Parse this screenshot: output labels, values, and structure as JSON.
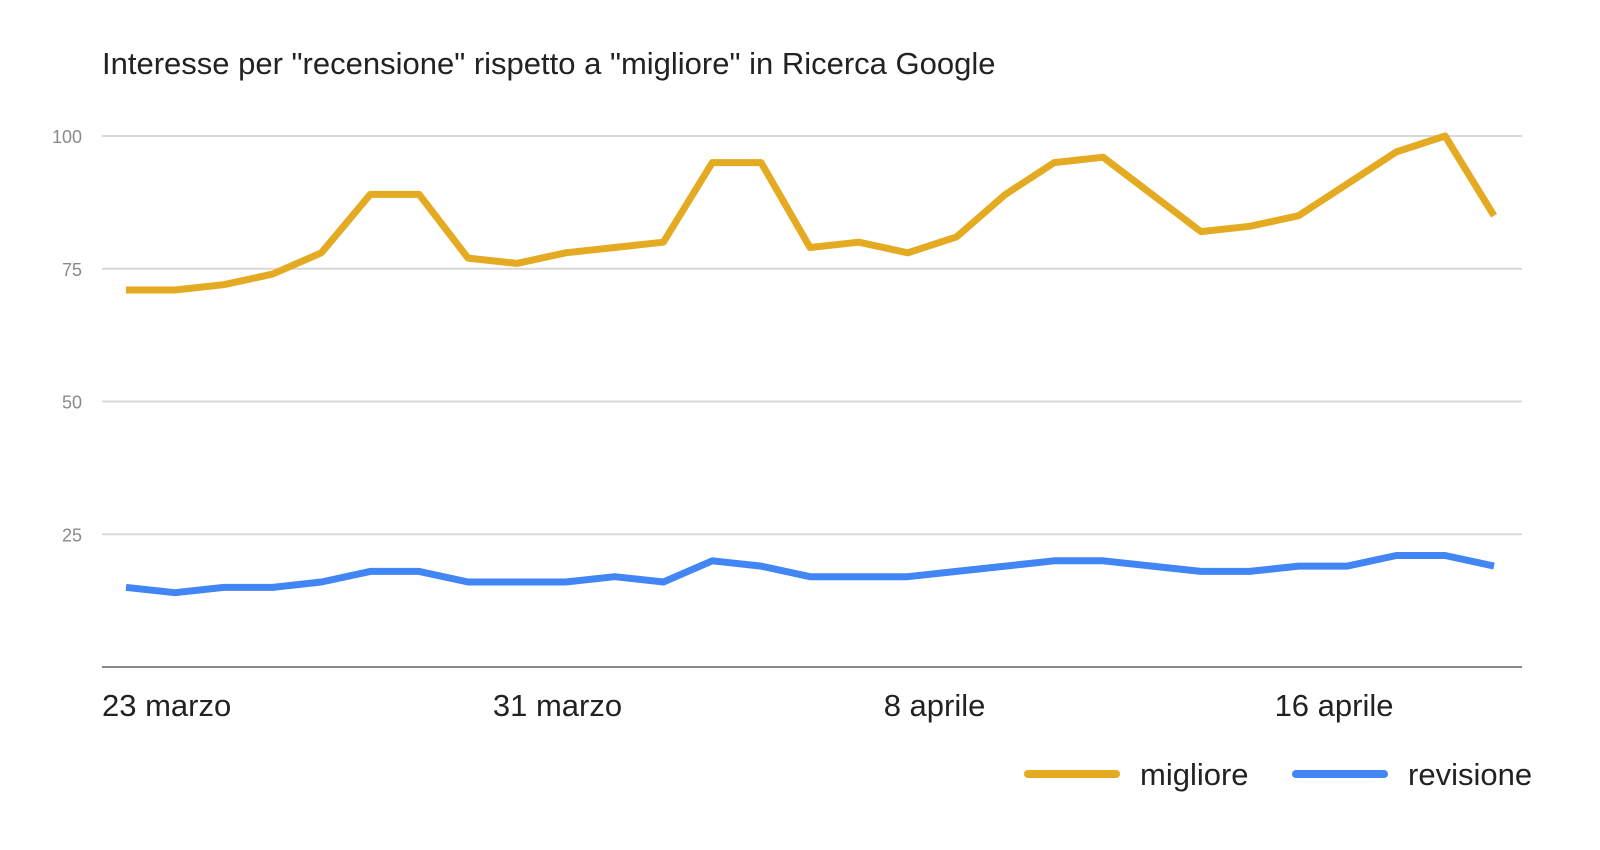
{
  "chart_data": {
    "type": "line",
    "title": "Interesse per \"recensione\" rispetto a \"migliore\" in Ricerca Google",
    "xlabel": "",
    "ylabel": "",
    "x": [
      "23 marzo",
      "24 marzo",
      "25 marzo",
      "26 marzo",
      "27 marzo",
      "28 marzo",
      "29 marzo",
      "30 marzo",
      "31 marzo",
      "1 aprile",
      "2 aprile",
      "3 aprile",
      "4 aprile",
      "5 aprile",
      "6 aprile",
      "7 aprile",
      "8 aprile",
      "9 aprile",
      "10 aprile",
      "11 aprile",
      "12 aprile",
      "13 aprile",
      "14 aprile",
      "15 aprile",
      "16 aprile",
      "17 aprile",
      "18 aprile",
      "19 aprile",
      "20 aprile"
    ],
    "x_tick_labels": [
      "23 marzo",
      "31 marzo",
      "8 aprile",
      "16 aprile"
    ],
    "x_tick_indices": [
      0,
      8,
      16,
      24
    ],
    "y_ticks": [
      25,
      50,
      75,
      100
    ],
    "ylim": [
      0,
      100
    ],
    "grid": true,
    "legend_position": "bottom-right",
    "series": [
      {
        "name": "migliore",
        "color": "#e4aa22",
        "values": [
          71,
          71,
          72,
          74,
          78,
          89,
          89,
          77,
          76,
          78,
          79,
          80,
          95,
          95,
          79,
          80,
          78,
          81,
          89,
          95,
          96,
          89,
          82,
          83,
          85,
          91,
          97,
          100,
          85
        ]
      },
      {
        "name": "revisione",
        "color": "#4285f4",
        "values": [
          15,
          14,
          15,
          15,
          16,
          18,
          18,
          16,
          16,
          16,
          17,
          16,
          20,
          19,
          17,
          17,
          17,
          18,
          19,
          20,
          20,
          19,
          18,
          18,
          19,
          19,
          21,
          21,
          19
        ]
      }
    ]
  }
}
